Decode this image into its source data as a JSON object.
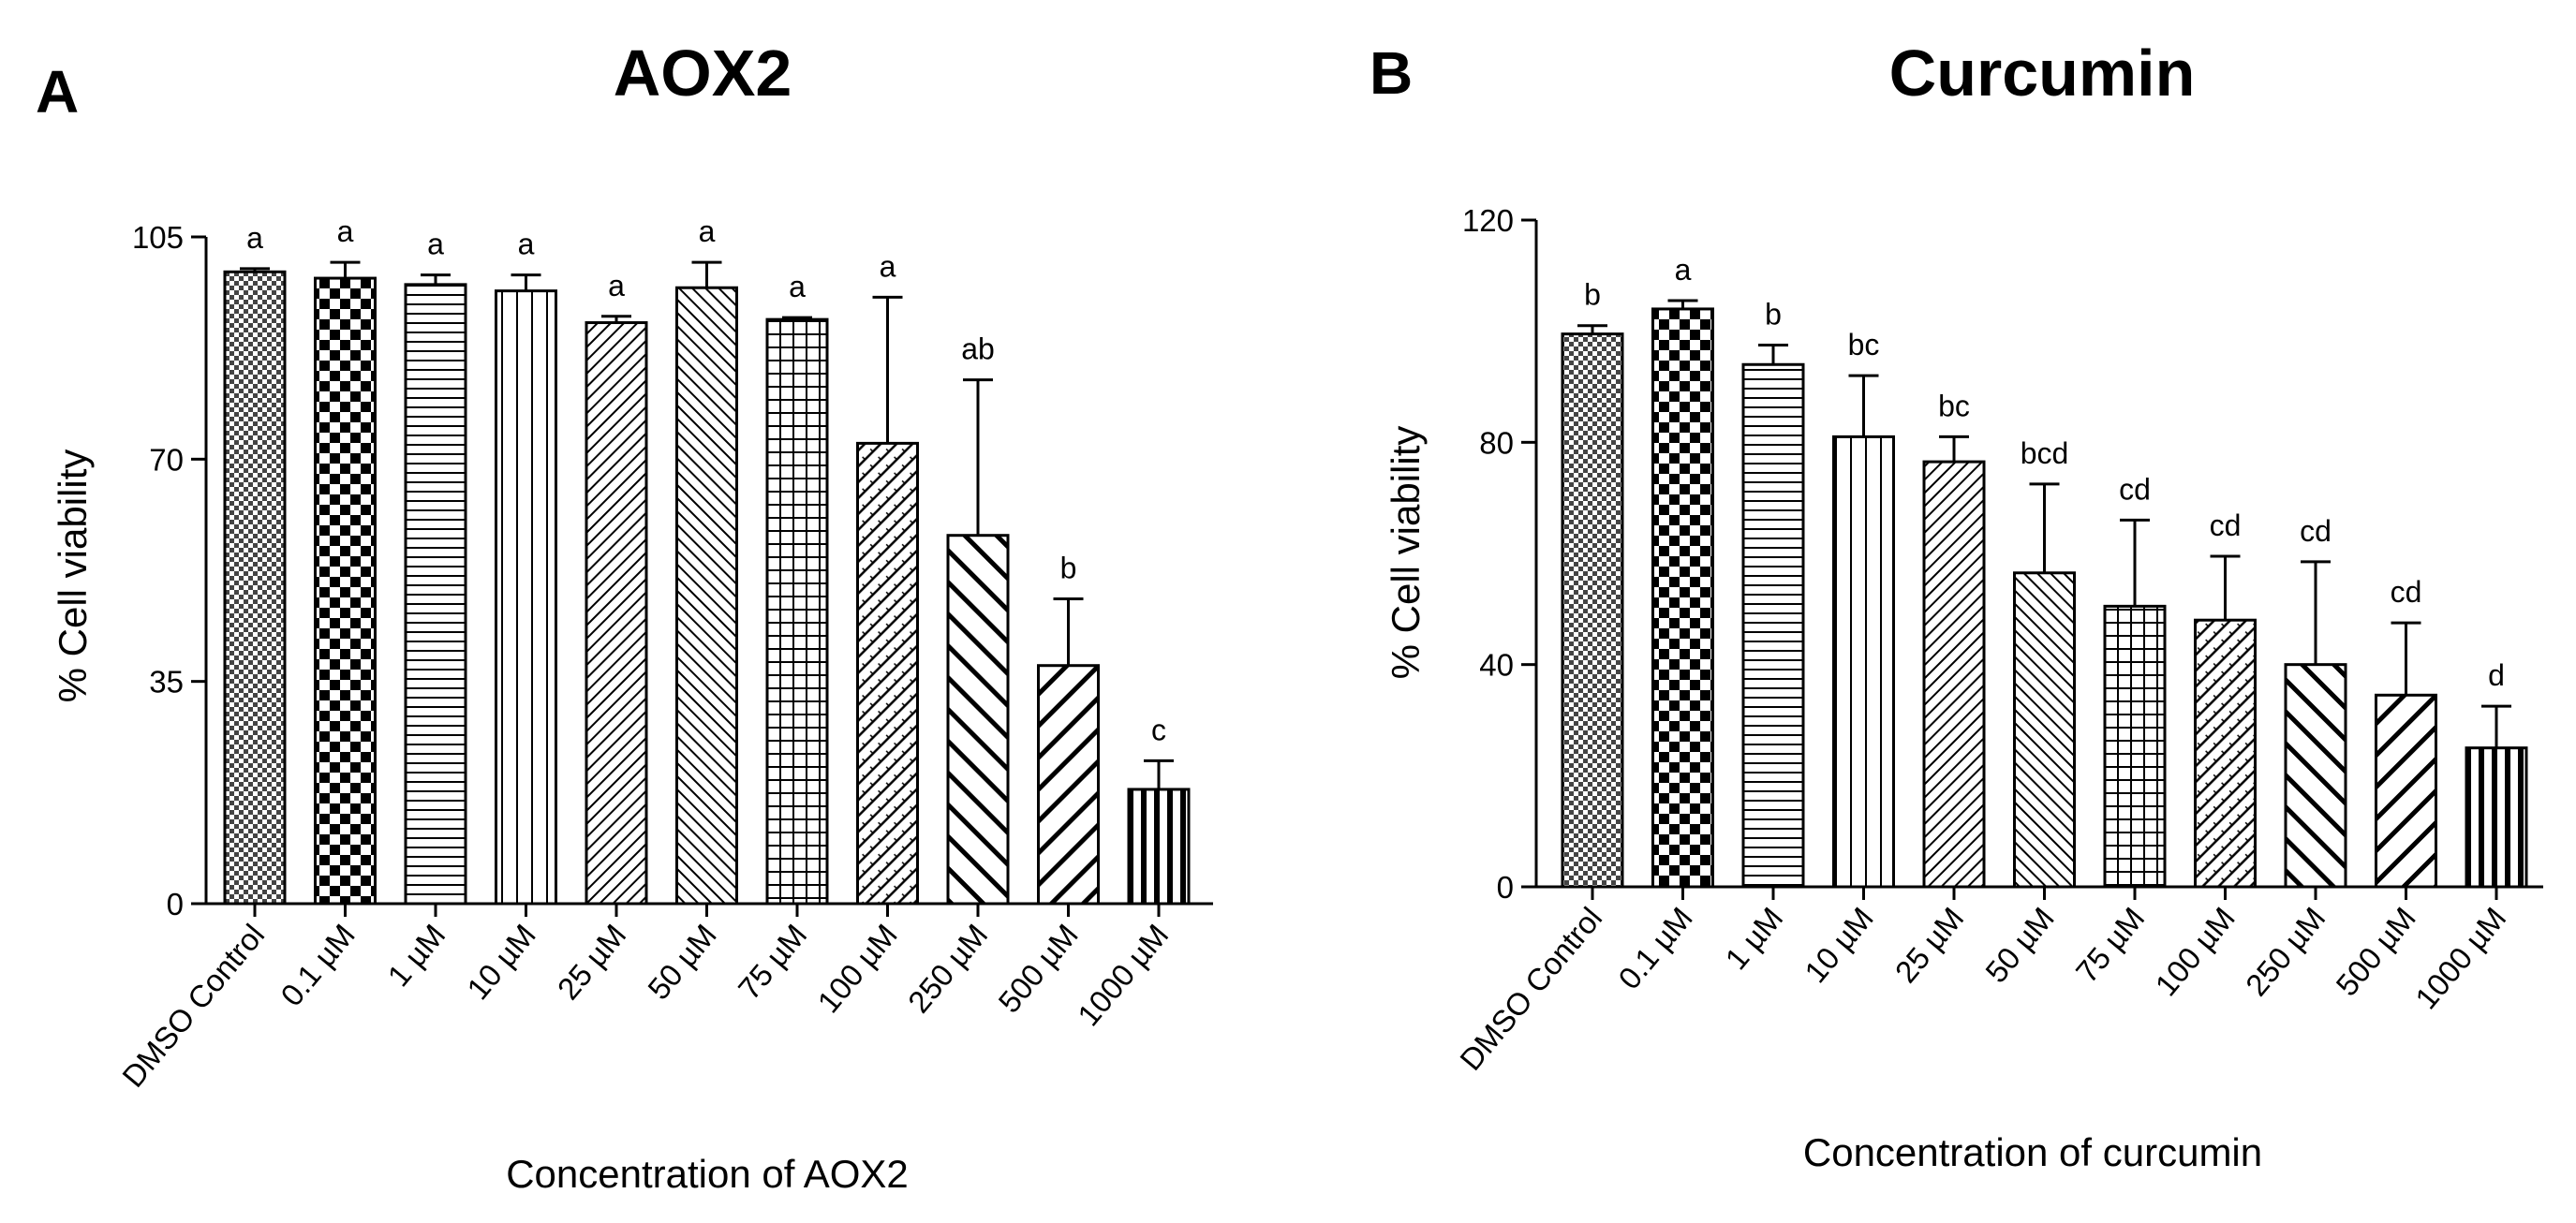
{
  "chart_data": [
    {
      "type": "bar",
      "panel": "A",
      "title": "AOX2",
      "xlabel": "Concentration of AOX2",
      "ylabel": "% Cell viability",
      "ylim": [
        0,
        105
      ],
      "yticks": [
        0,
        35,
        70,
        105
      ],
      "ytick_labels": [
        "0",
        "35",
        "70",
        "105"
      ],
      "categories": [
        "DMSO Control",
        "0.1 µM",
        "1 µM",
        "10 µM",
        "25 µM",
        "50 µM",
        "75 µM",
        "100 µM",
        "250 µM",
        "500 µM",
        "1000 µM"
      ],
      "values": [
        99.5,
        98.5,
        97.5,
        96.5,
        91.5,
        97,
        92,
        72.5,
        58,
        37.5,
        18
      ],
      "errors": [
        0.5,
        2.5,
        1.5,
        2.5,
        1,
        4,
        0.3,
        23,
        24.5,
        10.5,
        4.5
      ],
      "letters": [
        "a",
        "a",
        "a",
        "a",
        "a",
        "a",
        "a",
        "a",
        "ab",
        "b",
        "c"
      ],
      "patterns": [
        "checkfine",
        "checkbold",
        "hlines",
        "vlines",
        "diagfine",
        "diagback",
        "grid",
        "diagdense",
        "diagbackbold",
        "diagbold",
        "vbold"
      ],
      "grid": false
    },
    {
      "type": "bar",
      "panel": "B",
      "title": "Curcumin",
      "xlabel": "Concentration of curcumin",
      "ylabel": "% Cell viability",
      "ylim": [
        0,
        120
      ],
      "yticks": [
        0,
        40,
        80,
        120
      ],
      "ytick_labels": [
        "0",
        "40",
        "80",
        "120"
      ],
      "categories": [
        "DMSO Control",
        "0.1 µM",
        "1 µM",
        "10 µM",
        "25 µM",
        "50 µM",
        "75 µM",
        "100 µM",
        "250 µM",
        "500 µM",
        "1000 µM"
      ],
      "values": [
        99.5,
        104,
        94,
        81,
        76.5,
        56.5,
        50.5,
        48,
        40,
        34.5,
        25
      ],
      "errors": [
        1.5,
        1.5,
        3.5,
        11,
        4.5,
        16,
        15.5,
        11.5,
        18.5,
        13,
        7.5
      ],
      "letters": [
        "b",
        "a",
        "b",
        "bc",
        "bc",
        "bcd",
        "cd",
        "cd",
        "cd",
        "cd",
        "d"
      ],
      "patterns": [
        "checkfine",
        "checkbold",
        "hlines",
        "vlines",
        "diagfine",
        "diagback",
        "grid",
        "diagdense",
        "diagbackbold",
        "diagbold",
        "vbold"
      ],
      "grid": false
    }
  ]
}
